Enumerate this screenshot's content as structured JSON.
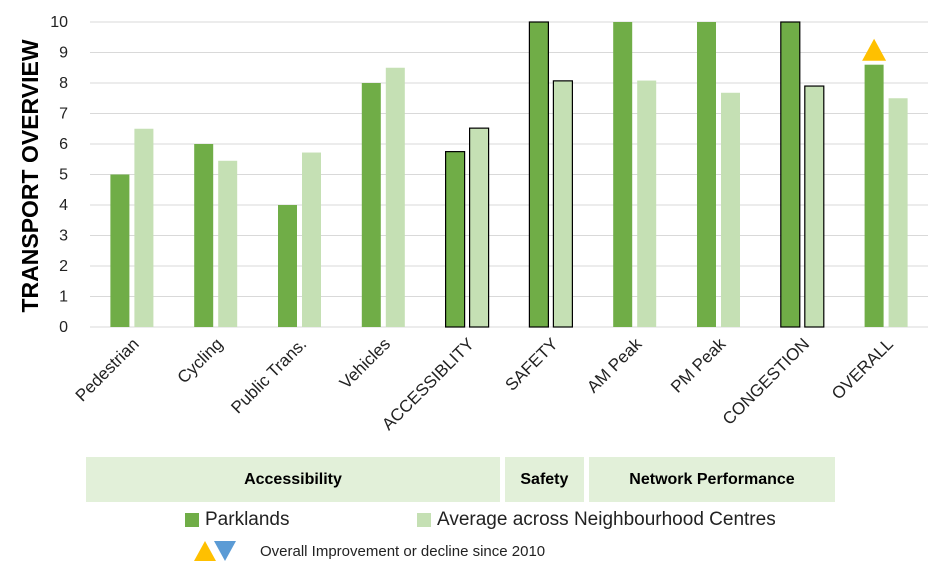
{
  "chart_data": {
    "type": "bar",
    "title": "",
    "ylabel": "TRANSPORT OVERVIEW",
    "ylim": [
      0,
      10
    ],
    "yticks": [
      "0",
      "1",
      "2",
      "3",
      "4",
      "5",
      "6",
      "7",
      "8",
      "9",
      "10"
    ],
    "categories": [
      "Pedestrian",
      "Cycling",
      "Public Trans.",
      "Vehicles",
      "ACCESSIBLITY",
      "SAFETY",
      "AM Peak",
      "PM Peak",
      "CONGESTION",
      "OVERALL"
    ],
    "summary_categories": [
      "ACCESSIBLITY",
      "SAFETY",
      "CONGESTION"
    ],
    "series": [
      {
        "name": "Parklands",
        "color": "#70ad47",
        "values": [
          5,
          6,
          4,
          8,
          5.75,
          10,
          10,
          10,
          10,
          8.6
        ]
      },
      {
        "name": "Average across Neighbourhood Centres",
        "color": "#c5e0b4",
        "values": [
          6.5,
          5.45,
          5.72,
          8.5,
          6.52,
          8.07,
          8.08,
          7.68,
          7.9,
          7.5
        ]
      }
    ],
    "trend_marker": {
      "category": "OVERALL",
      "direction": "up",
      "color": "#ffc000"
    },
    "groups": [
      {
        "label": "Accessibility",
        "span": [
          "Pedestrian",
          "ACCESSIBLITY"
        ]
      },
      {
        "label": "Safety",
        "span": [
          "SAFETY",
          "SAFETY"
        ]
      },
      {
        "label": "Network Performance",
        "span": [
          "AM Peak",
          "CONGESTION"
        ]
      }
    ],
    "legend": {
      "position": "bottom"
    },
    "grid": true
  },
  "note": {
    "text": "Overall Improvement or decline since 2010",
    "up_color": "#ffc000",
    "down_color": "#5b9bd5"
  }
}
